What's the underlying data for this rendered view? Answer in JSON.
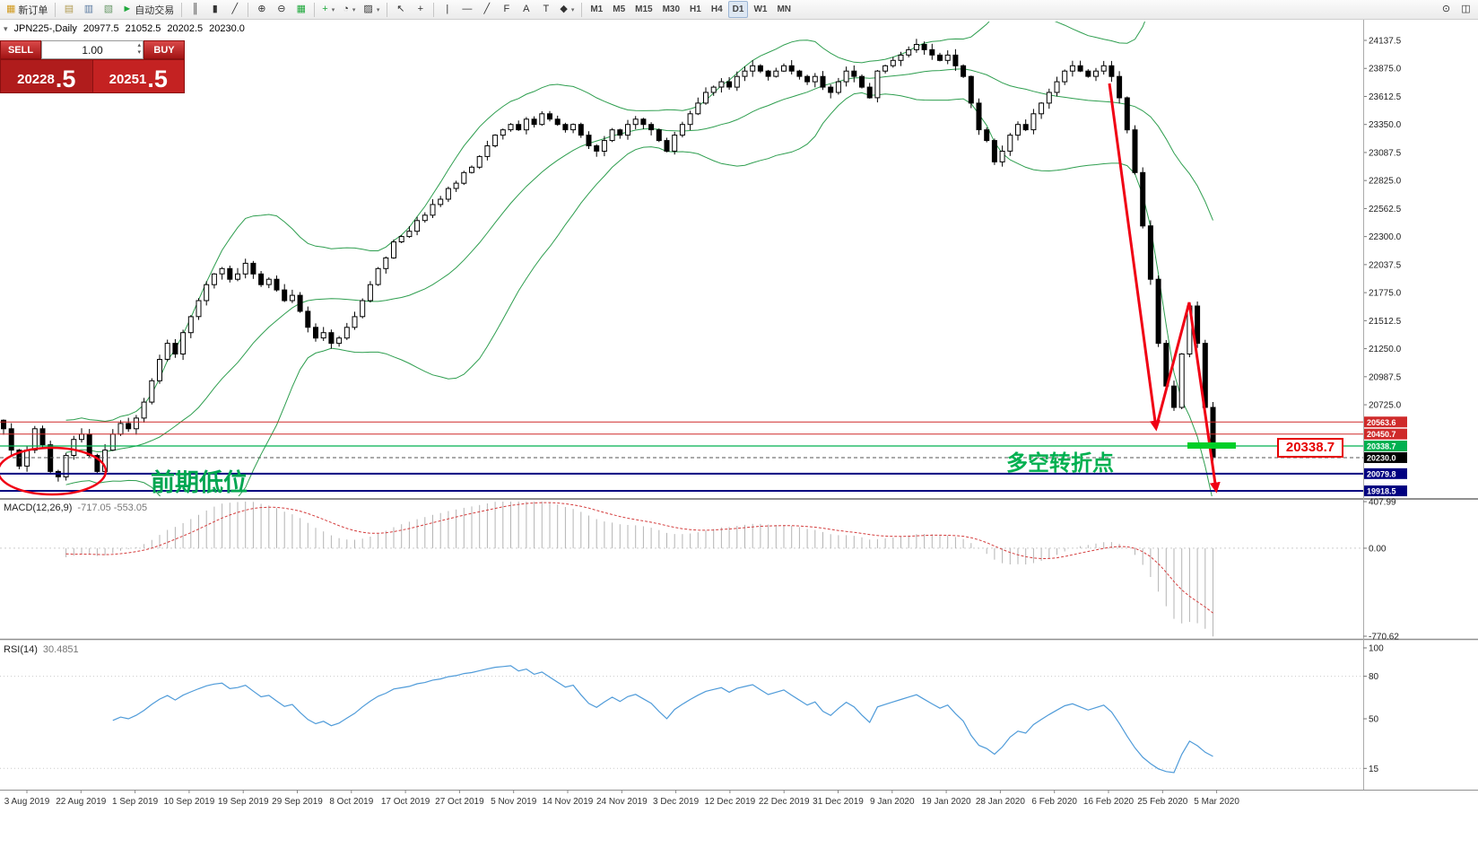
{
  "toolbar": {
    "groups": [
      [
        {
          "name": "new-order-button",
          "label": "新订单",
          "icon": "▦",
          "icon_color": "#d19a1e"
        }
      ],
      [
        {
          "name": "chart-window-button",
          "icon": "▤",
          "icon_color": "#b09a50"
        },
        {
          "name": "market-watch-button",
          "icon": "▥",
          "icon_color": "#5a7aa0"
        },
        {
          "name": "data-window-button",
          "icon": "▧",
          "icon_color": "#6a9a6a"
        },
        {
          "name": "auto-trading-button",
          "label": "自动交易",
          "icon": "►",
          "icon_color": "#1fa83c"
        }
      ],
      [
        {
          "name": "bar-chart-button",
          "icon": "║"
        },
        {
          "name": "candlestick-chart-button",
          "icon": "▮"
        },
        {
          "name": "line-chart-button",
          "icon": "╱"
        }
      ],
      [
        {
          "name": "zoom-in-button",
          "icon": "⊕"
        },
        {
          "name": "zoom-out-button",
          "icon": "⊖"
        },
        {
          "name": "grid-button",
          "icon": "▦",
          "icon_color": "#1fa83c"
        }
      ],
      [
        {
          "name": "indicators-button",
          "icon": "+",
          "icon_color": "#1fa83c",
          "caret": true
        },
        {
          "name": "periods-button",
          "icon": "◔",
          "caret": true
        },
        {
          "name": "templates-button",
          "icon": "▨",
          "caret": true
        }
      ],
      [
        {
          "name": "cursor-button",
          "icon": "↖"
        },
        {
          "name": "crosshair-button",
          "icon": "+"
        }
      ],
      [
        {
          "name": "vertical-line-button",
          "icon": "|"
        },
        {
          "name": "horizontal-line-button",
          "icon": "—"
        },
        {
          "name": "trendline-button",
          "icon": "╱"
        },
        {
          "name": "fibonacci-button",
          "icon": "F"
        },
        {
          "name": "text-button",
          "icon": "A"
        },
        {
          "name": "label-button",
          "icon": "T"
        },
        {
          "name": "shapes-button",
          "icon": "◆",
          "caret": true
        }
      ]
    ],
    "timeframes": [
      "M1",
      "M5",
      "M15",
      "M30",
      "H1",
      "H4",
      "D1",
      "W1",
      "MN"
    ],
    "active_timeframe": "D1",
    "right_buttons": [
      {
        "name": "search-button",
        "icon": "⊙"
      },
      {
        "name": "layout-button",
        "icon": "◫"
      }
    ]
  },
  "icons": {
    "collapse": "▾",
    "spinner_up": "▴",
    "spinner_down": "▾"
  },
  "chart_header": {
    "symbol": "JPN225-,Daily",
    "open": "20977.5",
    "high": "21052.5",
    "low": "20202.5",
    "close": "20230.0"
  },
  "trade_panel": {
    "sell_label": "SELL",
    "buy_label": "BUY",
    "volume": "1.00",
    "sell_price_main": "20228",
    "sell_price_frac": ".5",
    "buy_price_main": "20251",
    "buy_price_frac": ".5"
  },
  "annotations": {
    "prev_low_label": "前期低位",
    "turning_point_label": "多空转折点",
    "price_callout": "20338.7"
  },
  "price_lines": [
    {
      "label": "20563.6",
      "price": 20563.6,
      "color": "#cf2a2a",
      "width": 1,
      "type": "resistance"
    },
    {
      "label": "20450.7",
      "price": 20450.7,
      "color": "#cf2a2a",
      "width": 1,
      "type": "resistance"
    },
    {
      "label": "20338.7",
      "price": 20338.7,
      "color": "#00b050",
      "width": 1.2,
      "type": "support"
    },
    {
      "label": "20230.0",
      "price": 20230.0,
      "color": "#000000",
      "width": 1,
      "type": "current"
    },
    {
      "label": "20079.8",
      "price": 20079.8,
      "color": "#000080",
      "width": 2,
      "type": "support"
    },
    {
      "label": "19918.5",
      "price": 19918.5,
      "color": "#000080",
      "width": 2,
      "type": "support"
    }
  ],
  "chart_data": {
    "type": "candlestick",
    "symbol": "JPN225-",
    "timeframe": "Daily",
    "ohlc_header": [
      20977.5,
      21052.5,
      20202.5,
      20230.0
    ],
    "y_ticks": [
      24137.5,
      23875.0,
      23612.5,
      23350.0,
      23087.5,
      22825.0,
      22562.5,
      22300.0,
      22037.5,
      21775.0,
      21512.5,
      21250.0,
      20987.5,
      20725.0
    ],
    "x_labels": [
      "3 Aug 2019",
      "22 Aug 2019",
      "1 Sep 2019",
      "10 Sep 2019",
      "19 Sep 2019",
      "29 Sep 2019",
      "8 Oct 2019",
      "17 Oct 2019",
      "27 Oct 2019",
      "5 Nov 2019",
      "14 Nov 2019",
      "24 Nov 2019",
      "3 Dec 2019",
      "12 Dec 2019",
      "22 Dec 2019",
      "31 Dec 2019",
      "9 Jan 2020",
      "19 Jan 2020",
      "28 Jan 2020",
      "6 Feb 2020",
      "16 Feb 2020",
      "25 Feb 2020",
      "5 Mar 2020"
    ],
    "closes": [
      20500,
      20300,
      20150,
      20300,
      20500,
      20350,
      20100,
      20050,
      20250,
      20400,
      20450,
      20250,
      20100,
      20300,
      20450,
      20550,
      20500,
      20600,
      20750,
      20950,
      21150,
      21300,
      21200,
      21400,
      21550,
      21700,
      21850,
      21950,
      22000,
      21900,
      21950,
      22050,
      21950,
      21850,
      21900,
      21800,
      21700,
      21750,
      21600,
      21450,
      21350,
      21400,
      21300,
      21350,
      21450,
      21550,
      21700,
      21850,
      22000,
      22100,
      22250,
      22300,
      22350,
      22450,
      22500,
      22600,
      22650,
      22750,
      22800,
      22900,
      22950,
      23050,
      23150,
      23250,
      23300,
      23350,
      23300,
      23400,
      23350,
      23450,
      23400,
      23350,
      23300,
      23350,
      23250,
      23150,
      23100,
      23200,
      23300,
      23250,
      23350,
      23400,
      23350,
      23300,
      23200,
      23100,
      23250,
      23350,
      23450,
      23550,
      23650,
      23700,
      23750,
      23700,
      23800,
      23850,
      23900,
      23850,
      23800,
      23850,
      23900,
      23850,
      23800,
      23750,
      23800,
      23700,
      23650,
      23750,
      23850,
      23800,
      23700,
      23600,
      23850,
      23900,
      23950,
      24000,
      24050,
      24100,
      24050,
      24000,
      23950,
      24000,
      23900,
      23800,
      23550,
      23300,
      23200,
      23000,
      23100,
      23250,
      23350,
      23300,
      23450,
      23550,
      23650,
      23750,
      23850,
      23900,
      23850,
      23800,
      23850,
      23900,
      23800,
      23600,
      23300,
      22900,
      22400,
      21900,
      21300,
      20900,
      20700,
      21200,
      21650,
      21300,
      20700,
      20230
    ],
    "indicators": {
      "bollinger": {
        "period": 20,
        "deviation": 2,
        "color": "#2e9e4f"
      },
      "macd": {
        "label": "MACD(12,26,9)",
        "values_text": "-717.05 -553.05",
        "axis": [
          407.99,
          0.0,
          -770.62
        ],
        "histogram_color": "#b4b4b4",
        "signal_color": "#d43c3c"
      },
      "rsi": {
        "label": "RSI(14)",
        "value_text": "30.4851",
        "axis": [
          100,
          80,
          50,
          15
        ],
        "levels": [
          80,
          15
        ],
        "color": "#4f9bd9"
      }
    }
  }
}
